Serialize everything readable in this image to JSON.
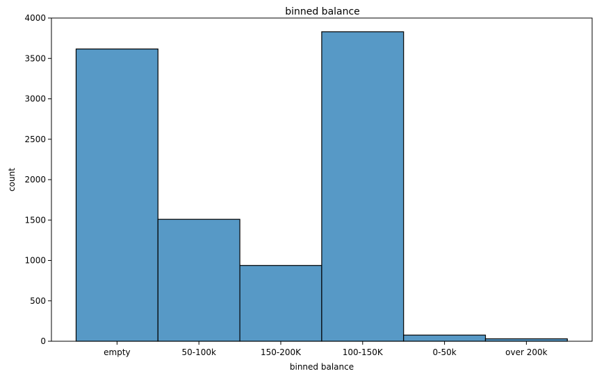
{
  "chart_data": {
    "type": "bar",
    "title": "binned balance",
    "xlabel": "binned balance",
    "ylabel": "count",
    "categories": [
      "empty",
      "50-100k",
      "150-200K",
      "100-150K",
      "0-50k",
      "over 200k"
    ],
    "values": [
      3617,
      1509,
      938,
      3830,
      76,
      30
    ],
    "ylim": [
      0,
      4000
    ],
    "yticks": [
      0,
      500,
      1000,
      1500,
      2000,
      2500,
      3000,
      3500,
      4000
    ],
    "grid": false,
    "bar_color": "#5799c6",
    "edge_color": "#000000"
  }
}
